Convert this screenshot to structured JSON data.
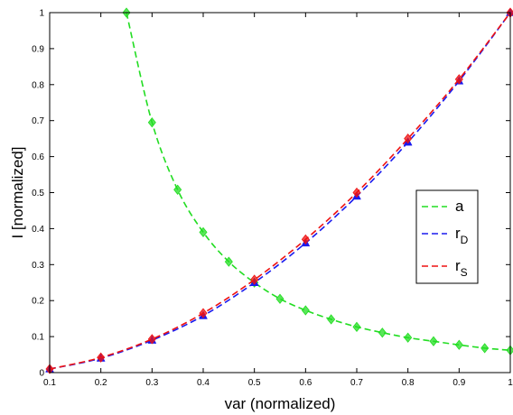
{
  "chart_data": {
    "type": "line",
    "title": "",
    "xlabel": "var (normalized)",
    "ylabel": "I [normalized]",
    "xlim": [
      0.1,
      1
    ],
    "ylim": [
      0,
      1
    ],
    "x_ticks": [
      "0.1",
      "0.2",
      "0.3",
      "0.4",
      "0.5",
      "0.6",
      "0.7",
      "0.8",
      "0.9",
      "1"
    ],
    "y_ticks": [
      "0",
      "0.1",
      "0.2",
      "0.3",
      "0.4",
      "0.5",
      "0.6",
      "0.7",
      "0.8",
      "0.9",
      "1"
    ],
    "grid": false,
    "legend_position": "right",
    "series": [
      {
        "name": "a",
        "legend_main": "a",
        "legend_sub": "",
        "color": "#22dd22",
        "line_style": "dashed",
        "marker": "diamond",
        "x": [
          0.25,
          0.3,
          0.35,
          0.4,
          0.45,
          0.5,
          0.55,
          0.6,
          0.65,
          0.7,
          0.75,
          0.8,
          0.85,
          0.9,
          0.95,
          1.0
        ],
        "y": [
          1.0,
          0.695,
          0.508,
          0.39,
          0.308,
          0.25,
          0.205,
          0.173,
          0.148,
          0.127,
          0.111,
          0.097,
          0.087,
          0.077,
          0.068,
          0.062
        ]
      },
      {
        "name": "r_D",
        "legend_main": "r",
        "legend_sub": "D",
        "color": "#1a1aee",
        "line_style": "dashed",
        "marker": "triangle",
        "x": [
          0.1,
          0.2,
          0.3,
          0.4,
          0.5,
          0.6,
          0.7,
          0.8,
          0.9,
          1.0
        ],
        "y": [
          0.01,
          0.04,
          0.09,
          0.158,
          0.25,
          0.36,
          0.49,
          0.64,
          0.81,
          1.0
        ]
      },
      {
        "name": "r_S",
        "legend_main": "r",
        "legend_sub": "S",
        "color": "#ee1111",
        "line_style": "dashed",
        "marker": "diamond",
        "x": [
          0.1,
          0.2,
          0.3,
          0.4,
          0.5,
          0.6,
          0.7,
          0.8,
          0.9,
          1.0
        ],
        "y": [
          0.01,
          0.042,
          0.093,
          0.165,
          0.258,
          0.37,
          0.5,
          0.65,
          0.815,
          1.0
        ]
      }
    ]
  }
}
